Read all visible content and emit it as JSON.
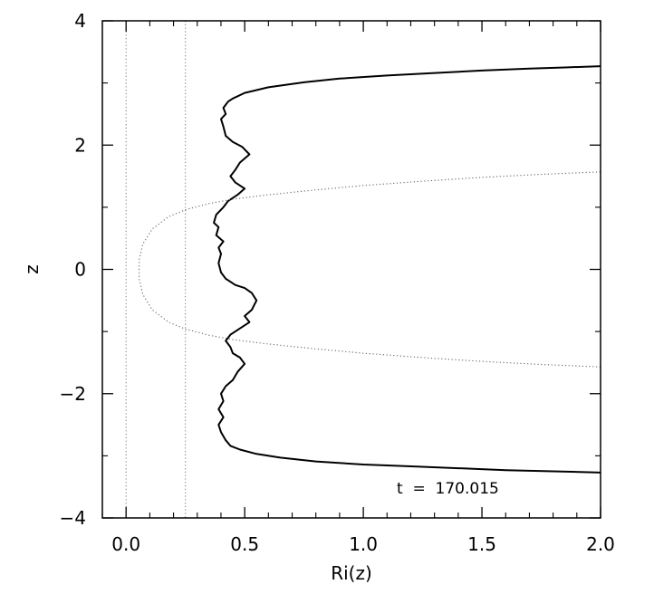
{
  "chart_data": {
    "type": "line",
    "xlabel": "Ri(z)",
    "ylabel": "z",
    "xlim": [
      -0.1,
      2.0
    ],
    "ylim": [
      -4,
      4
    ],
    "x_ticks": [
      {
        "value": 0.0,
        "label": "0.0"
      },
      {
        "value": 0.5,
        "label": "0.5"
      },
      {
        "value": 1.0,
        "label": "1.0"
      },
      {
        "value": 1.5,
        "label": "1.5"
      },
      {
        "value": 2.0,
        "label": "2.0"
      }
    ],
    "y_ticks": [
      {
        "value": -4,
        "label": "−4"
      },
      {
        "value": -2,
        "label": "−2"
      },
      {
        "value": 0,
        "label": "0"
      },
      {
        "value": 2,
        "label": "2"
      },
      {
        "value": 4,
        "label": "4"
      }
    ],
    "annotation": "t  =  170.015",
    "grid": false,
    "reference_lines": [
      {
        "orientation": "vertical",
        "x": 0.0,
        "style": "dotted"
      },
      {
        "orientation": "vertical",
        "x": 0.25,
        "style": "dotted"
      }
    ],
    "series": [
      {
        "style": "solid",
        "color": "#000000",
        "points": [
          [
            2.0,
            -3.27
          ],
          [
            1.8,
            -3.25
          ],
          [
            1.6,
            -3.23
          ],
          [
            1.4,
            -3.2
          ],
          [
            1.2,
            -3.17
          ],
          [
            1.0,
            -3.14
          ],
          [
            0.8,
            -3.09
          ],
          [
            0.65,
            -3.03
          ],
          [
            0.55,
            -2.97
          ],
          [
            0.48,
            -2.9
          ],
          [
            0.44,
            -2.84
          ],
          [
            0.42,
            -2.75
          ],
          [
            0.4,
            -2.62
          ],
          [
            0.39,
            -2.5
          ],
          [
            0.41,
            -2.38
          ],
          [
            0.39,
            -2.25
          ],
          [
            0.41,
            -2.12
          ],
          [
            0.4,
            -2.0
          ],
          [
            0.42,
            -1.88
          ],
          [
            0.45,
            -1.78
          ],
          [
            0.47,
            -1.65
          ],
          [
            0.5,
            -1.52
          ],
          [
            0.48,
            -1.42
          ],
          [
            0.45,
            -1.35
          ],
          [
            0.44,
            -1.25
          ],
          [
            0.42,
            -1.15
          ],
          [
            0.44,
            -1.05
          ],
          [
            0.48,
            -0.95
          ],
          [
            0.52,
            -0.85
          ],
          [
            0.5,
            -0.75
          ],
          [
            0.53,
            -0.65
          ],
          [
            0.55,
            -0.5
          ],
          [
            0.53,
            -0.38
          ],
          [
            0.5,
            -0.3
          ],
          [
            0.46,
            -0.25
          ],
          [
            0.42,
            -0.15
          ],
          [
            0.4,
            -0.05
          ],
          [
            0.39,
            0.1
          ],
          [
            0.4,
            0.25
          ],
          [
            0.39,
            0.35
          ],
          [
            0.41,
            0.45
          ],
          [
            0.38,
            0.55
          ],
          [
            0.39,
            0.68
          ],
          [
            0.37,
            0.75
          ],
          [
            0.38,
            0.88
          ],
          [
            0.41,
            1.0
          ],
          [
            0.43,
            1.1
          ],
          [
            0.47,
            1.2
          ],
          [
            0.5,
            1.3
          ],
          [
            0.46,
            1.4
          ],
          [
            0.44,
            1.5
          ],
          [
            0.46,
            1.6
          ],
          [
            0.48,
            1.72
          ],
          [
            0.52,
            1.85
          ],
          [
            0.49,
            1.97
          ],
          [
            0.45,
            2.05
          ],
          [
            0.42,
            2.15
          ],
          [
            0.41,
            2.3
          ],
          [
            0.4,
            2.42
          ],
          [
            0.42,
            2.5
          ],
          [
            0.41,
            2.6
          ],
          [
            0.43,
            2.7
          ],
          [
            0.45,
            2.75
          ],
          [
            0.5,
            2.84
          ],
          [
            0.6,
            2.93
          ],
          [
            0.75,
            3.01
          ],
          [
            0.9,
            3.07
          ],
          [
            1.1,
            3.12
          ],
          [
            1.3,
            3.16
          ],
          [
            1.5,
            3.2
          ],
          [
            1.7,
            3.23
          ],
          [
            1.85,
            3.25
          ],
          [
            2.0,
            3.27
          ]
        ]
      },
      {
        "style": "dotted",
        "color": "#666666",
        "points": [
          [
            2.0,
            -1.57
          ],
          [
            1.75,
            -1.53
          ],
          [
            1.5,
            -1.48
          ],
          [
            1.25,
            -1.42
          ],
          [
            1.0,
            -1.35
          ],
          [
            0.8,
            -1.28
          ],
          [
            0.6,
            -1.2
          ],
          [
            0.45,
            -1.13
          ],
          [
            0.35,
            -1.06
          ],
          [
            0.25,
            -0.96
          ],
          [
            0.18,
            -0.85
          ],
          [
            0.11,
            -0.65
          ],
          [
            0.07,
            -0.4
          ],
          [
            0.055,
            -0.15
          ],
          [
            0.055,
            0.15
          ],
          [
            0.07,
            0.4
          ],
          [
            0.11,
            0.65
          ],
          [
            0.18,
            0.85
          ],
          [
            0.25,
            0.96
          ],
          [
            0.35,
            1.06
          ],
          [
            0.45,
            1.13
          ],
          [
            0.6,
            1.2
          ],
          [
            0.8,
            1.28
          ],
          [
            1.0,
            1.35
          ],
          [
            1.25,
            1.42
          ],
          [
            1.5,
            1.48
          ],
          [
            1.75,
            1.53
          ],
          [
            2.0,
            1.57
          ]
        ]
      }
    ]
  }
}
